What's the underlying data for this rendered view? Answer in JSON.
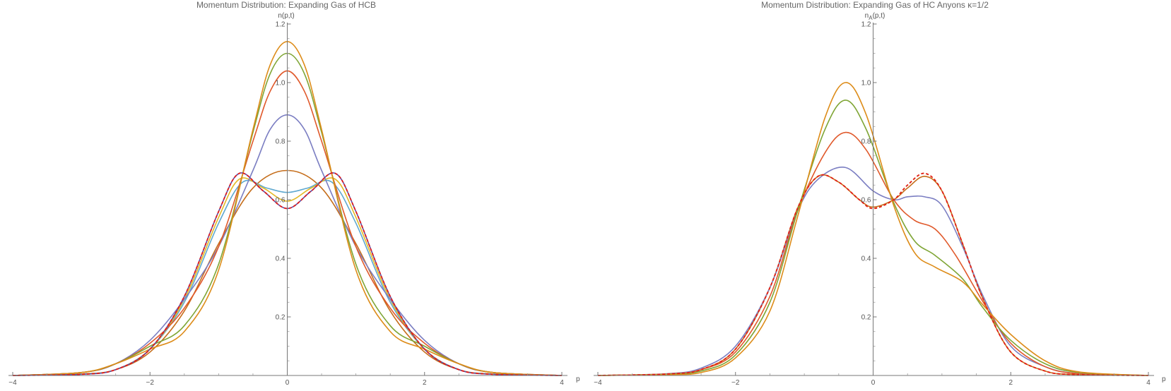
{
  "chart_data": [
    {
      "type": "line",
      "title": "Momentum Distribution: Expanding Gas of HCB",
      "xlabel": "p",
      "ylabel": "n(p,t)",
      "xlim": [
        -4,
        4
      ],
      "ylim": [
        0,
        1.2
      ],
      "xticks": [
        -4,
        -2,
        0,
        2,
        4
      ],
      "yticks": [
        0.2,
        0.4,
        0.6,
        0.8,
        1.0,
        1.2
      ],
      "ytick_labels": [
        "0.2",
        "0.4",
        "0.6",
        "0.8",
        "1.0",
        "1.2"
      ],
      "grid": false,
      "series": [
        {
          "color": "#c56d1a",
          "x": [
            -4,
            -3,
            -2.5,
            -2,
            -1.5,
            -1,
            -0.5,
            0,
            0.5,
            1,
            1.5,
            2,
            2.5,
            3,
            4
          ],
          "y": [
            0.0,
            0.005,
            0.02,
            0.08,
            0.22,
            0.45,
            0.64,
            0.7,
            0.64,
            0.45,
            0.22,
            0.08,
            0.02,
            0.005,
            0.0
          ]
        },
        {
          "color": "#5fa8cf",
          "x": [
            -4,
            -3,
            -2.5,
            -2,
            -1.5,
            -1,
            -0.65,
            -0.3,
            0,
            0.3,
            0.65,
            1,
            1.5,
            2,
            2.5,
            3,
            4
          ],
          "y": [
            0.0,
            0.005,
            0.02,
            0.09,
            0.25,
            0.52,
            0.66,
            0.64,
            0.625,
            0.64,
            0.66,
            0.52,
            0.25,
            0.09,
            0.02,
            0.005,
            0.0
          ]
        },
        {
          "color": "#e3b925",
          "x": [
            -4,
            -3,
            -2.5,
            -2,
            -1.5,
            -1,
            -0.7,
            -0.35,
            0,
            0.35,
            0.7,
            1,
            1.5,
            2,
            2.5,
            3,
            4
          ],
          "y": [
            0.0,
            0.005,
            0.02,
            0.09,
            0.26,
            0.54,
            0.67,
            0.64,
            0.595,
            0.64,
            0.67,
            0.54,
            0.26,
            0.09,
            0.02,
            0.005,
            0.0
          ]
        },
        {
          "color": "#7b7ec2",
          "x": [
            -4,
            -3,
            -2.5,
            -2,
            -1.5,
            -1,
            -0.5,
            -0.25,
            0,
            0.25,
            0.5,
            1,
            1.5,
            2,
            2.5,
            3,
            4
          ],
          "y": [
            0.0,
            0.01,
            0.04,
            0.12,
            0.26,
            0.44,
            0.7,
            0.84,
            0.89,
            0.84,
            0.7,
            0.44,
            0.26,
            0.12,
            0.04,
            0.01,
            0.0
          ]
        },
        {
          "color": "#e0592b",
          "x": [
            -4,
            -3,
            -2.5,
            -2,
            -1.5,
            -1,
            -0.5,
            -0.25,
            0,
            0.25,
            0.5,
            1,
            1.5,
            2,
            2.5,
            3,
            4
          ],
          "y": [
            0.0,
            0.01,
            0.04,
            0.11,
            0.23,
            0.44,
            0.8,
            0.97,
            1.04,
            0.97,
            0.8,
            0.44,
            0.23,
            0.11,
            0.04,
            0.01,
            0.0
          ]
        },
        {
          "color": "#7fa535",
          "x": [
            -4,
            -3,
            -2.5,
            -2,
            -1.5,
            -1,
            -0.5,
            -0.25,
            0,
            0.25,
            0.5,
            1,
            1.5,
            2,
            2.5,
            3,
            4
          ],
          "y": [
            0.0,
            0.01,
            0.04,
            0.1,
            0.17,
            0.38,
            0.83,
            1.03,
            1.1,
            1.03,
            0.83,
            0.38,
            0.17,
            0.1,
            0.04,
            0.01,
            0.0
          ]
        },
        {
          "color": "#dd8c19",
          "x": [
            -4,
            -3,
            -2.5,
            -2,
            -1.5,
            -1,
            -0.5,
            -0.25,
            0,
            0.25,
            0.5,
            1,
            1.5,
            2,
            2.5,
            3,
            4
          ],
          "y": [
            0.0,
            0.01,
            0.04,
            0.09,
            0.15,
            0.36,
            0.84,
            1.06,
            1.14,
            1.06,
            0.84,
            0.36,
            0.15,
            0.09,
            0.04,
            0.01,
            0.0
          ]
        },
        {
          "color": "#5d4da3",
          "x": [
            -4,
            -3,
            -2.5,
            -2,
            -1.5,
            -1,
            -0.7,
            -0.35,
            0,
            0.35,
            0.7,
            1,
            1.5,
            2,
            2.5,
            3,
            4
          ],
          "y": [
            0.0,
            0.004,
            0.02,
            0.09,
            0.27,
            0.56,
            0.69,
            0.63,
            0.57,
            0.63,
            0.69,
            0.56,
            0.27,
            0.09,
            0.02,
            0.004,
            0.0
          ]
        },
        {
          "color": "#e21a1a",
          "dashed": true,
          "x": [
            -4,
            -3,
            -2.5,
            -2,
            -1.5,
            -1,
            -0.7,
            -0.35,
            0,
            0.35,
            0.7,
            1,
            1.5,
            2,
            2.5,
            3,
            4
          ],
          "y": [
            0.0,
            0.004,
            0.02,
            0.09,
            0.27,
            0.56,
            0.69,
            0.63,
            0.57,
            0.63,
            0.69,
            0.56,
            0.27,
            0.09,
            0.02,
            0.004,
            0.0
          ]
        }
      ]
    },
    {
      "type": "line",
      "title": "Momentum Distribution: Expanding Gas of HC Anyons κ=1/2",
      "xlabel": "p",
      "ylabel": "n",
      "ylabel_sub": "A",
      "ylabel_suffix": "(p,t)",
      "xlim": [
        -4,
        4
      ],
      "ylim": [
        0,
        1.2
      ],
      "xticks": [
        -4,
        -2,
        0,
        2,
        4
      ],
      "yticks": [
        0.2,
        0.4,
        0.6,
        0.8,
        1.0,
        1.2
      ],
      "ytick_labels": [
        "0.2",
        "0.4",
        "0.6",
        "0.8",
        "1.0",
        "1.2"
      ],
      "grid": false,
      "series": [
        {
          "color": "#c56d1a",
          "x": [
            -4,
            -3,
            -2.5,
            -2,
            -1.5,
            -1.1,
            -0.8,
            -0.5,
            -0.2,
            0,
            0.3,
            0.5,
            0.75,
            1,
            1.3,
            1.6,
            2,
            2.5,
            3,
            4
          ],
          "y": [
            0.0,
            0.005,
            0.02,
            0.09,
            0.3,
            0.57,
            0.68,
            0.66,
            0.6,
            0.575,
            0.6,
            0.64,
            0.68,
            0.63,
            0.45,
            0.26,
            0.08,
            0.015,
            0.003,
            0.0
          ]
        },
        {
          "color": "#7b7ec2",
          "x": [
            -4,
            -3,
            -2.5,
            -2,
            -1.5,
            -1.1,
            -0.8,
            -0.4,
            0,
            0.3,
            0.5,
            0.75,
            1,
            1.3,
            1.6,
            2,
            2.5,
            3,
            4
          ],
          "y": [
            0.0,
            0.006,
            0.025,
            0.1,
            0.3,
            0.56,
            0.67,
            0.71,
            0.63,
            0.6,
            0.61,
            0.61,
            0.58,
            0.44,
            0.27,
            0.1,
            0.03,
            0.006,
            0.0
          ]
        },
        {
          "color": "#e0592b",
          "x": [
            -4,
            -3,
            -2.5,
            -2,
            -1.5,
            -1.1,
            -0.7,
            -0.4,
            -0.1,
            0.3,
            0.6,
            0.9,
            1.2,
            1.6,
            2,
            2.5,
            3,
            4
          ],
          "y": [
            0.0,
            0.005,
            0.02,
            0.08,
            0.27,
            0.56,
            0.76,
            0.83,
            0.77,
            0.6,
            0.53,
            0.5,
            0.41,
            0.25,
            0.11,
            0.03,
            0.006,
            0.0
          ]
        },
        {
          "color": "#7fa535",
          "x": [
            -4,
            -3,
            -2.5,
            -2,
            -1.5,
            -1.1,
            -0.7,
            -0.4,
            -0.1,
            0.3,
            0.6,
            0.9,
            1.3,
            1.6,
            2,
            2.5,
            3,
            4
          ],
          "y": [
            0.0,
            0.004,
            0.015,
            0.07,
            0.25,
            0.56,
            0.84,
            0.94,
            0.84,
            0.59,
            0.46,
            0.41,
            0.33,
            0.23,
            0.12,
            0.04,
            0.01,
            0.0
          ]
        },
        {
          "color": "#dd8c19",
          "x": [
            -4,
            -3,
            -2.5,
            -2,
            -1.5,
            -1.1,
            -0.7,
            -0.4,
            -0.1,
            0.3,
            0.6,
            0.9,
            1.3,
            1.6,
            2,
            2.5,
            3,
            4
          ],
          "y": [
            0.0,
            0.003,
            0.01,
            0.06,
            0.22,
            0.54,
            0.88,
            1.0,
            0.89,
            0.58,
            0.42,
            0.37,
            0.32,
            0.24,
            0.14,
            0.05,
            0.012,
            0.0
          ]
        },
        {
          "color": "#e3b925",
          "dashed": true,
          "x": [
            -4,
            -3,
            -2.5,
            -2,
            -1.5,
            -1.1,
            -0.8,
            -0.5,
            -0.2,
            0,
            0.3,
            0.5,
            0.75,
            1,
            1.3,
            1.6,
            2,
            2.5,
            3,
            4
          ],
          "y": [
            0.0,
            0.005,
            0.02,
            0.09,
            0.3,
            0.57,
            0.68,
            0.66,
            0.6,
            0.57,
            0.6,
            0.65,
            0.69,
            0.63,
            0.45,
            0.26,
            0.08,
            0.015,
            0.003,
            0.0
          ]
        },
        {
          "color": "#e21a1a",
          "dashed": true,
          "x": [
            -4,
            -3,
            -2.5,
            -2,
            -1.5,
            -1.1,
            -0.8,
            -0.5,
            -0.2,
            0,
            0.3,
            0.5,
            0.75,
            1,
            1.3,
            1.6,
            2,
            2.5,
            3,
            4
          ],
          "y": [
            0.0,
            0.005,
            0.02,
            0.09,
            0.3,
            0.57,
            0.68,
            0.66,
            0.6,
            0.57,
            0.6,
            0.65,
            0.69,
            0.63,
            0.45,
            0.26,
            0.08,
            0.015,
            0.003,
            0.0
          ]
        }
      ]
    }
  ]
}
